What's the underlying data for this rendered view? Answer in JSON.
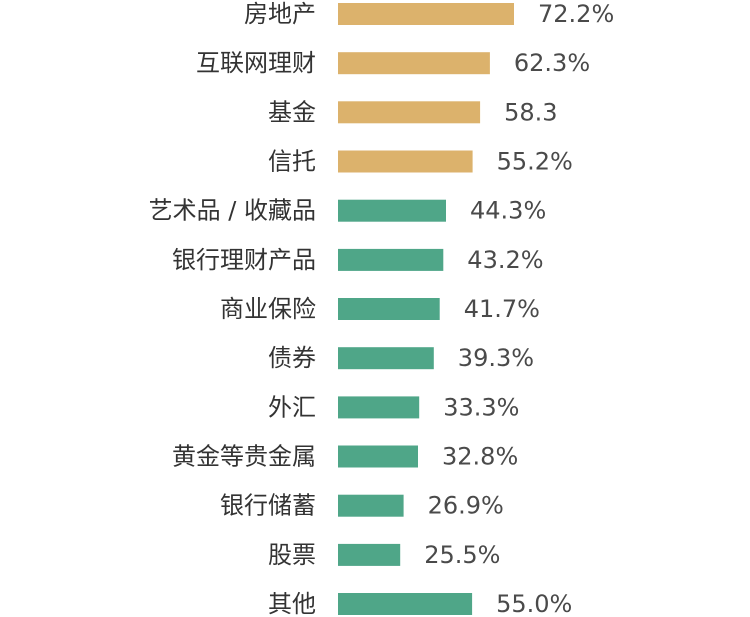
{
  "chart_data": {
    "type": "bar",
    "orientation": "horizontal",
    "title": "",
    "xlabel": "",
    "ylabel": "",
    "grid": false,
    "categories": [
      "房地产",
      "互联网理财",
      "基金",
      "信托",
      "艺术品 / 收藏品",
      "银行理财产品",
      "商业保险",
      "债券",
      "外汇",
      "黄金等贵金属",
      "银行储蓄",
      "股票",
      "其他"
    ],
    "values": [
      72.2,
      62.3,
      58.3,
      55.2,
      44.3,
      43.2,
      41.7,
      39.3,
      33.3,
      32.8,
      26.9,
      25.5,
      55.0
    ],
    "value_labels": [
      "72.2%",
      "62.3%",
      "58.3",
      "55.2%",
      "44.3%",
      "43.2%",
      "41.7%",
      "39.3%",
      "33.3%",
      "32.8%",
      "26.9%",
      "25.5%",
      "55.0%"
    ],
    "highlight_count": 4,
    "colors": {
      "highlight": "#dcb26c",
      "default": "#4fa688"
    }
  }
}
